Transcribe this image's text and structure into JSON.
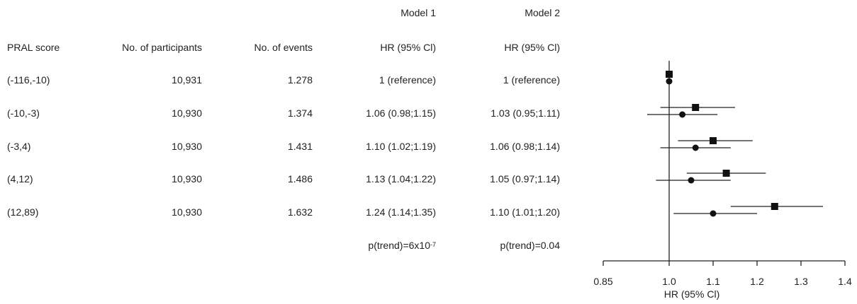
{
  "table": {
    "model_headers": [
      "Model 1",
      "Model 2"
    ],
    "columns": [
      "PRAL score",
      "No. of participants",
      "No. of events",
      "HR (95% Cl)",
      "HR (95% Cl)"
    ],
    "rows": [
      {
        "pral": "(-116,-10)",
        "participants": "10,931",
        "events": "1.278",
        "m1": "1 (reference)",
        "m2": "1 (reference)"
      },
      {
        "pral": "(-10,-3)",
        "participants": "10,930",
        "events": "1.374",
        "m1": "1.06 (0.98;1.15)",
        "m2": "1.03 (0.95;1.11)"
      },
      {
        "pral": "(-3,4)",
        "participants": "10,930",
        "events": "1.431",
        "m1": "1.10 (1.02;1.19)",
        "m2": "1.06 (0.98;1.14)"
      },
      {
        "pral": "(4,12)",
        "participants": "10,930",
        "events": "1.486",
        "m1": "1.13 (1.04;1.22)",
        "m2": "1.05 (0.97;1.14)"
      },
      {
        "pral": "(12,89)",
        "participants": "10,930",
        "events": "1.632",
        "m1": "1.24 (1.14;1.35)",
        "m2": "1.10 (1.01;1.20)"
      }
    ],
    "trend": {
      "m1_prefix": "p(trend)=6x10",
      "m1_exp": "-7",
      "m2": "p(trend)=0.04"
    }
  },
  "chart_data": {
    "type": "forest",
    "xlabel": "HR (95% Cl)",
    "xlim": [
      0.85,
      1.4
    ],
    "xticks": [
      0.85,
      1.0,
      1.1,
      1.2,
      1.3,
      1.4
    ],
    "xtick_labels": [
      "0.85",
      "1.0",
      "1.1",
      "1.2",
      "1.3",
      "1.4"
    ],
    "reference_line": 1.0,
    "categories": [
      "(-116,-10)",
      "(-10,-3)",
      "(-3,4)",
      "(4,12)",
      "(12,89)"
    ],
    "series": [
      {
        "name": "Model 1",
        "marker": "square",
        "values": [
          1.0,
          1.06,
          1.1,
          1.13,
          1.24
        ],
        "lower": [
          1.0,
          0.98,
          1.02,
          1.04,
          1.14
        ],
        "upper": [
          1.0,
          1.15,
          1.19,
          1.22,
          1.35
        ]
      },
      {
        "name": "Model 2",
        "marker": "circle",
        "values": [
          1.0,
          1.03,
          1.06,
          1.05,
          1.1
        ],
        "lower": [
          1.0,
          0.95,
          0.98,
          0.97,
          1.01
        ],
        "upper": [
          1.0,
          1.11,
          1.14,
          1.14,
          1.2
        ]
      }
    ]
  }
}
